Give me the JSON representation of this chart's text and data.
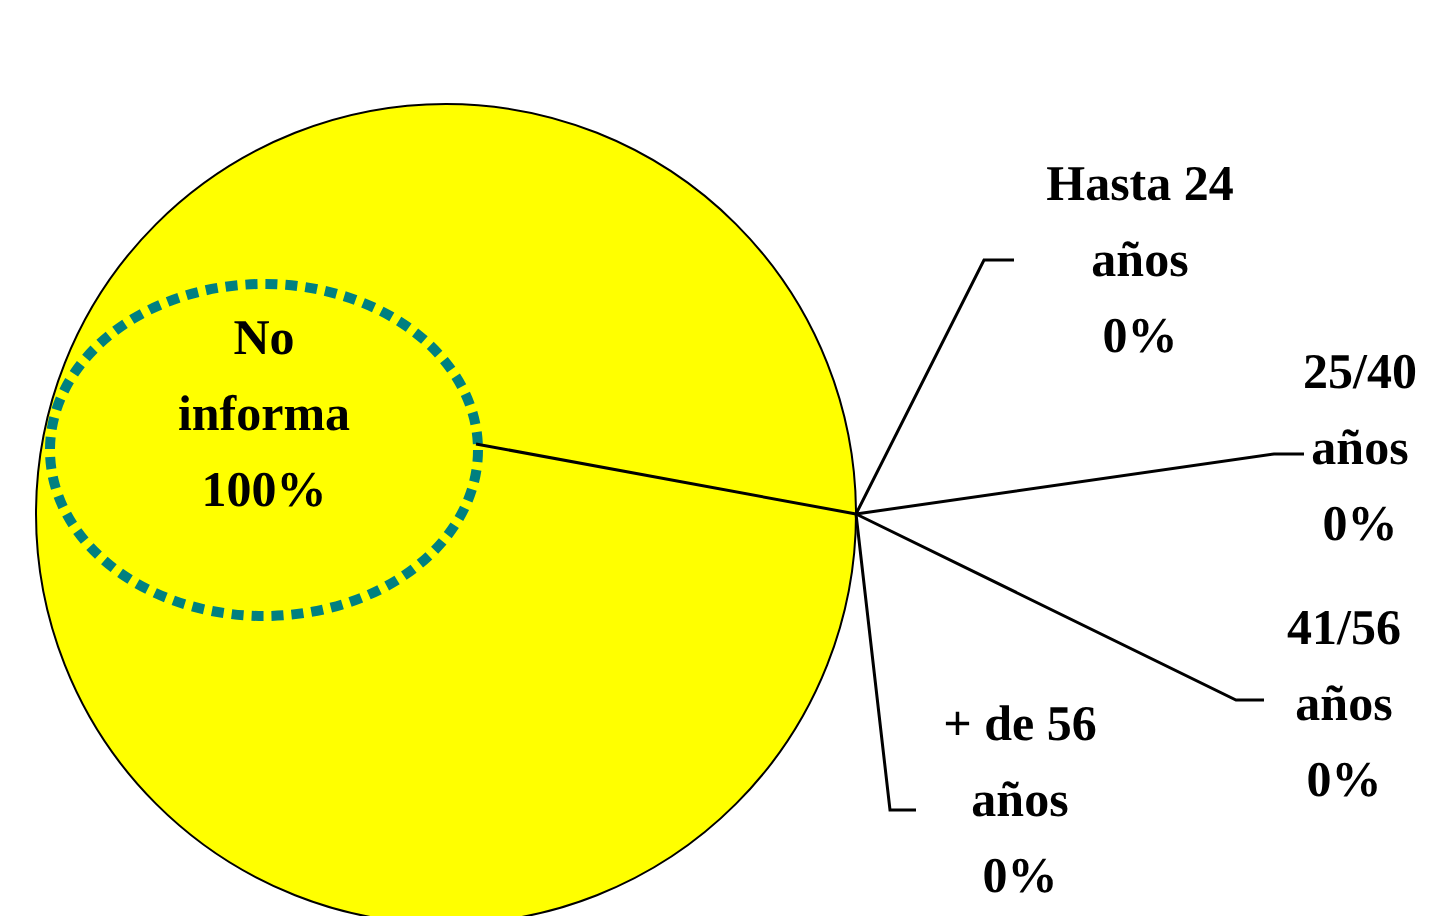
{
  "chart_data": {
    "type": "pie",
    "categories": [
      "Hasta 24 años",
      "25/40 años",
      "41/56 años",
      "+ de 56 años",
      "No informa"
    ],
    "values": [
      0,
      0,
      0,
      0,
      100
    ],
    "colors": [
      "#000080",
      "#ff00ff",
      "#00ffff",
      "#800080",
      "#ffff00"
    ],
    "value_labels": [
      "0%",
      "0%",
      "0%",
      "0%",
      "100%"
    ]
  }
}
